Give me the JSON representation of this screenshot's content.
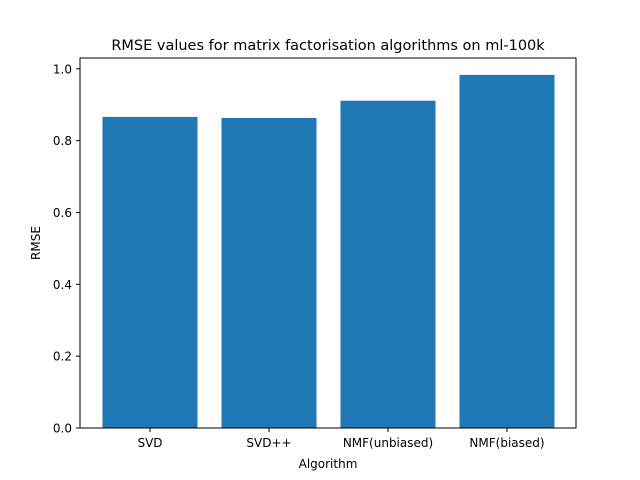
{
  "chart_data": {
    "type": "bar",
    "title": "RMSE values for matrix factorisation algorithms on ml-100k",
    "xlabel": "Algorithm",
    "ylabel": "RMSE",
    "categories": [
      "SVD",
      "SVD++",
      "NMF(unbiased)",
      "NMF(biased)"
    ],
    "values": [
      0.866,
      0.863,
      0.911,
      0.983
    ],
    "ylim": [
      0,
      1.03
    ],
    "yticks": [
      0.0,
      0.2,
      0.4,
      0.6,
      0.8,
      1.0
    ],
    "ytick_labels": [
      "0.0",
      "0.2",
      "0.4",
      "0.6",
      "0.8",
      "1.0"
    ],
    "grid": false,
    "bar_color": "#1f77b4"
  }
}
